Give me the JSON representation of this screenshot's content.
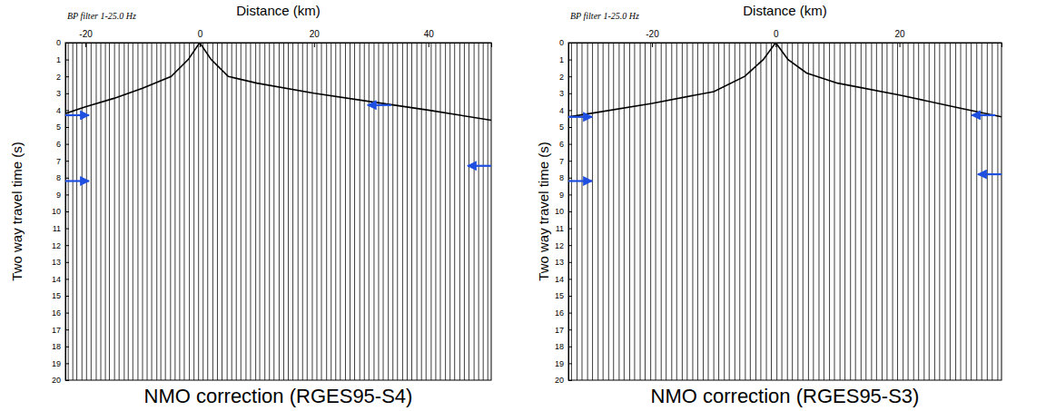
{
  "chart_data": [
    {
      "type": "wiggle",
      "title": "NMO correction (RGES95-S4)",
      "subtitle": "BP filter 1-25.0 Hz",
      "x_label": "Distance (km)",
      "y_label": "Two way travel time (s)",
      "color": "#000000",
      "xlim": [
        -23.5,
        51
      ],
      "ylim": [
        0,
        20
      ],
      "xticks": [
        -20,
        0,
        20,
        40
      ],
      "yticks": [
        0,
        1,
        2,
        3,
        4,
        5,
        6,
        7,
        8,
        9,
        10,
        11,
        12,
        13,
        14,
        15,
        16,
        17,
        18,
        19,
        20
      ],
      "trace_offsets": [
        -23,
        -22.2,
        -21.5,
        -20.6,
        -19.8,
        -19,
        -18.1,
        -17.3,
        -16.5,
        -15.8,
        -14.9,
        -14.1,
        -13.2,
        -12.5,
        -11.7,
        -10.8,
        -10,
        -9.2,
        -8.4,
        -7.5,
        -6.8,
        -6,
        -5.1,
        -4.3,
        -3.5,
        -2.7,
        -1.8,
        -1,
        -0.2,
        0.6,
        1.4,
        2.3,
        3.1,
        3.9,
        4.8,
        5.6,
        6.4,
        7.2,
        8.1,
        8.9,
        9.8,
        10.5,
        11.4,
        12.2,
        13,
        13.9,
        14.7,
        15.5,
        16.3,
        17.2,
        18,
        18.8,
        19.7,
        20.5,
        21.3,
        22.2,
        23,
        23.8,
        24.6,
        25.5,
        26.3,
        27.1,
        28,
        28.8,
        29.6,
        30.5,
        31.3,
        32.1,
        33,
        33.8,
        34.6,
        35.5,
        36.3,
        37.1,
        38,
        38.8,
        39.6,
        40.5,
        41.3,
        42.1,
        43,
        43.8,
        44.6,
        45.5,
        46.3,
        47.1,
        48,
        48.8,
        49.6,
        50.4
      ],
      "series": [
        {
          "type": "line",
          "color": "#000000",
          "x": [
            -23.5,
            -20,
            -15,
            -10,
            -5,
            -2,
            0,
            2,
            5,
            10,
            20,
            30,
            40,
            51
          ],
          "values": [
            4.2,
            3.8,
            3.3,
            2.7,
            2.0,
            1.0,
            0,
            1.0,
            2.0,
            2.4,
            3.0,
            3.5,
            4.0,
            4.6
          ]
        }
      ],
      "annotations": {
        "color": "#1f4fe0",
        "arrows": [
          {
            "x": -23.5,
            "y": 4.3,
            "direction": "right"
          },
          {
            "x": -23.5,
            "y": 8.2,
            "direction": "right"
          },
          {
            "x": 33.5,
            "y": 3.7,
            "direction": "left"
          },
          {
            "x": 51,
            "y": 7.3,
            "direction": "left"
          }
        ]
      }
    },
    {
      "type": "wiggle",
      "title": "NMO correction (RGES95-S3)",
      "subtitle": "BP filter 1-25.0 Hz",
      "x_label": "Distance (km)",
      "y_label": "Two way travel time (s)",
      "color": "#000000",
      "xlim": [
        -33.5,
        36.5
      ],
      "ylim": [
        0,
        20
      ],
      "xticks": [
        -20,
        0,
        20
      ],
      "yticks": [
        0,
        1,
        2,
        3,
        4,
        5,
        6,
        7,
        8,
        9,
        10,
        11,
        12,
        13,
        14,
        15,
        16,
        17,
        18,
        19,
        20
      ],
      "trace_offsets": [
        -33,
        -32.1,
        -31.3,
        -30.4,
        -29.6,
        -28.7,
        -27.9,
        -27,
        -26.2,
        -25.3,
        -24.5,
        -23.6,
        -22.8,
        -21.9,
        -21.1,
        -20.2,
        -19.4,
        -18.5,
        -17.7,
        -16.8,
        -16,
        -15.1,
        -14.3,
        -13.4,
        -12.6,
        -11.7,
        -10.9,
        -10,
        -9.2,
        -8.3,
        -7.5,
        -6.6,
        -5.8,
        -4.9,
        -4.1,
        -3.2,
        -2.4,
        -1.5,
        -0.7,
        0.2,
        1,
        1.9,
        2.7,
        3.6,
        4.4,
        5.3,
        6.1,
        7,
        7.8,
        8.7,
        9.5,
        10.4,
        11.2,
        12.1,
        12.9,
        13.8,
        14.6,
        15.5,
        16.3,
        17.2,
        18,
        18.9,
        19.7,
        20.6,
        21.4,
        22.3,
        23.1,
        24,
        24.8,
        25.7,
        26.5,
        27.4,
        28.2,
        29.1,
        29.9,
        30.8,
        31.6,
        32.5,
        33.3,
        34.2,
        35,
        35.9
      ],
      "series": [
        {
          "type": "line",
          "color": "#000000",
          "x": [
            -33.5,
            -30,
            -20,
            -10,
            -5,
            -2,
            0,
            2,
            5,
            10,
            20,
            30,
            36.5
          ],
          "values": [
            4.4,
            4.2,
            3.6,
            2.9,
            2.0,
            1.0,
            0,
            1.0,
            1.8,
            2.4,
            3.1,
            3.9,
            4.4
          ]
        }
      ],
      "annotations": {
        "color": "#1f4fe0",
        "arrows": [
          {
            "x": -33.5,
            "y": 4.4,
            "direction": "right"
          },
          {
            "x": -33.5,
            "y": 8.2,
            "direction": "right"
          },
          {
            "x": 35.5,
            "y": 4.3,
            "direction": "left"
          },
          {
            "x": 36.5,
            "y": 7.8,
            "direction": "left"
          }
        ]
      }
    }
  ]
}
